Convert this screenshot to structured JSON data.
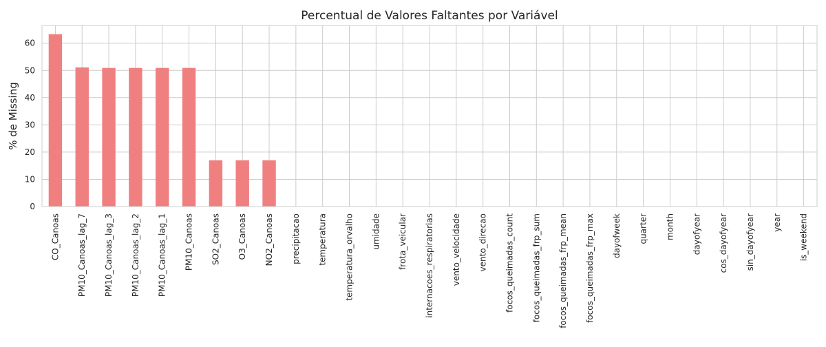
{
  "chart_data": {
    "type": "bar",
    "title": "Percentual de Valores Faltantes por Variável",
    "xlabel": "",
    "ylabel": "% de Missing",
    "ylim": [
      0,
      66.5
    ],
    "yticks": [
      0,
      10,
      20,
      30,
      40,
      50,
      60
    ],
    "grid": true,
    "legend": "none",
    "colors": {
      "bar": "#f08080",
      "grid": "#cccccc",
      "axes_edge": "#cccccc",
      "text": "#262626",
      "background": "#ffffff"
    },
    "categories": [
      "CO_Canoas",
      "PM10_Canoas_lag_7",
      "PM10_Canoas_lag_3",
      "PM10_Canoas_lag_2",
      "PM10_Canoas_lag_1",
      "PM10_Canoas",
      "SO2_Canoas",
      "O3_Canoas",
      "NO2_Canoas",
      "precipitacao",
      "temperatura",
      "temperatura_orvalho",
      "umidade",
      "frota_veicular",
      "internacoes_respiratorias",
      "vento_velocidade",
      "vento_direcao",
      "focos_queimadas_count",
      "focos_queimadas_frp_sum",
      "focos_queimadas_frp_mean",
      "focos_queimadas_frp_max",
      "dayofweek",
      "quarter",
      "month",
      "dayofyear",
      "cos_dayofyear",
      "sin_dayofyear",
      "year",
      "is_weekend"
    ],
    "values": [
      63.3,
      51.1,
      50.9,
      50.9,
      50.9,
      50.9,
      17.0,
      17.0,
      17.0,
      0,
      0,
      0,
      0,
      0,
      0,
      0,
      0,
      0,
      0,
      0,
      0,
      0,
      0,
      0,
      0,
      0,
      0,
      0,
      0
    ]
  }
}
